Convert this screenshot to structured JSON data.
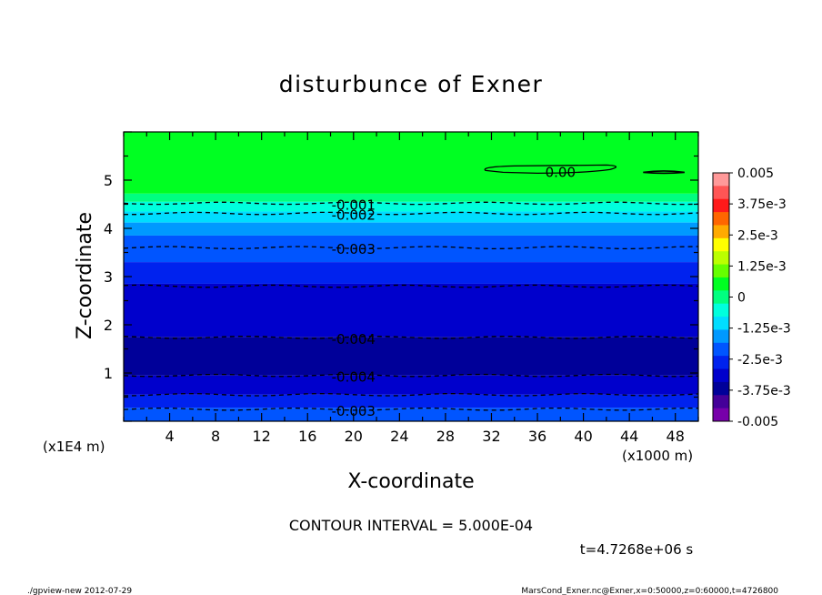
{
  "chart_data": {
    "type": "heatmap",
    "subtype": "filled-contour",
    "title": "disturbunce of Exner",
    "xlabel": "X-coordinate",
    "ylabel": "Z-coordinate",
    "x_unit": "(x1000 m)",
    "y_unit": "(x1E4 m)",
    "x_ticks": [
      "4",
      "8",
      "12",
      "16",
      "20",
      "24",
      "28",
      "32",
      "36",
      "40",
      "44",
      "48"
    ],
    "y_ticks": [
      "1",
      "2",
      "3",
      "4",
      "5"
    ],
    "xlim": [
      0,
      50
    ],
    "ylim": [
      0,
      6
    ],
    "contour_interval": "CONTOUR INTERVAL = 5.000E-04",
    "time_label": "t=4.7268e+06 s",
    "colorbar": {
      "min": -0.005,
      "max": 0.005,
      "labels": [
        "0.005",
        "3.75e-3",
        "2.5e-3",
        "1.25e-3",
        "0",
        "-1.25e-3",
        "-2.5e-3",
        "-3.75e-3",
        "-0.005"
      ],
      "colors": [
        "#ff9999",
        "#ff5555",
        "#ff1a1a",
        "#ff6600",
        "#ffaa00",
        "#ffff00",
        "#bbff00",
        "#66ff00",
        "#00ff22",
        "#00ff80",
        "#00ffdd",
        "#00ddff",
        "#0099ff",
        "#0055ff",
        "#0022ee",
        "#0000cc",
        "#000099",
        "#440099",
        "#7700aa"
      ]
    },
    "bands": [
      {
        "z0": 4.72,
        "z1": 6.0,
        "color": "#00ff22"
      },
      {
        "z0": 4.55,
        "z1": 4.72,
        "color": "#00ff80"
      },
      {
        "z0": 4.35,
        "z1": 4.55,
        "color": "#00ffdd"
      },
      {
        "z0": 4.12,
        "z1": 4.35,
        "color": "#00ddff"
      },
      {
        "z0": 3.85,
        "z1": 4.12,
        "color": "#0099ff"
      },
      {
        "z0": 3.3,
        "z1": 3.85,
        "color": "#0055ff"
      },
      {
        "z0": 2.85,
        "z1": 3.3,
        "color": "#0022ee"
      },
      {
        "z0": 1.75,
        "z1": 2.85,
        "color": "#0000cc"
      },
      {
        "z0": 0.95,
        "z1": 1.75,
        "color": "#000099"
      },
      {
        "z0": 0.55,
        "z1": 0.95,
        "color": "#0000cc"
      },
      {
        "z0": 0.28,
        "z1": 0.55,
        "color": "#0022ee"
      },
      {
        "z0": 0.0,
        "z1": 0.28,
        "color": "#0055ff"
      }
    ],
    "contours": [
      {
        "z": 4.52,
        "label": "-0.001",
        "label_x": 20
      },
      {
        "z": 4.31,
        "label": "-0.002",
        "label_x": 20
      },
      {
        "z": 3.6,
        "label": "-0.003",
        "label_x": 20
      },
      {
        "z": 2.8,
        "label": "",
        "label_x": 20
      },
      {
        "z": 1.74,
        "label": "-0.004",
        "label_x": 20
      },
      {
        "z": 0.95,
        "label": "-0.004",
        "label_x": 20
      },
      {
        "z": 0.55,
        "label": "",
        "label_x": 20
      },
      {
        "z": 0.25,
        "label": "-0.003",
        "label_x": 20
      }
    ],
    "zero_contour": {
      "label": "0.00",
      "label_x": 38,
      "z": 5.2
    }
  },
  "footer": {
    "left": "./gpview-new   2012-07-29",
    "right": "MarsCond_Exner.nc@Exner,x=0:50000,z=0:60000,t=4726800"
  }
}
